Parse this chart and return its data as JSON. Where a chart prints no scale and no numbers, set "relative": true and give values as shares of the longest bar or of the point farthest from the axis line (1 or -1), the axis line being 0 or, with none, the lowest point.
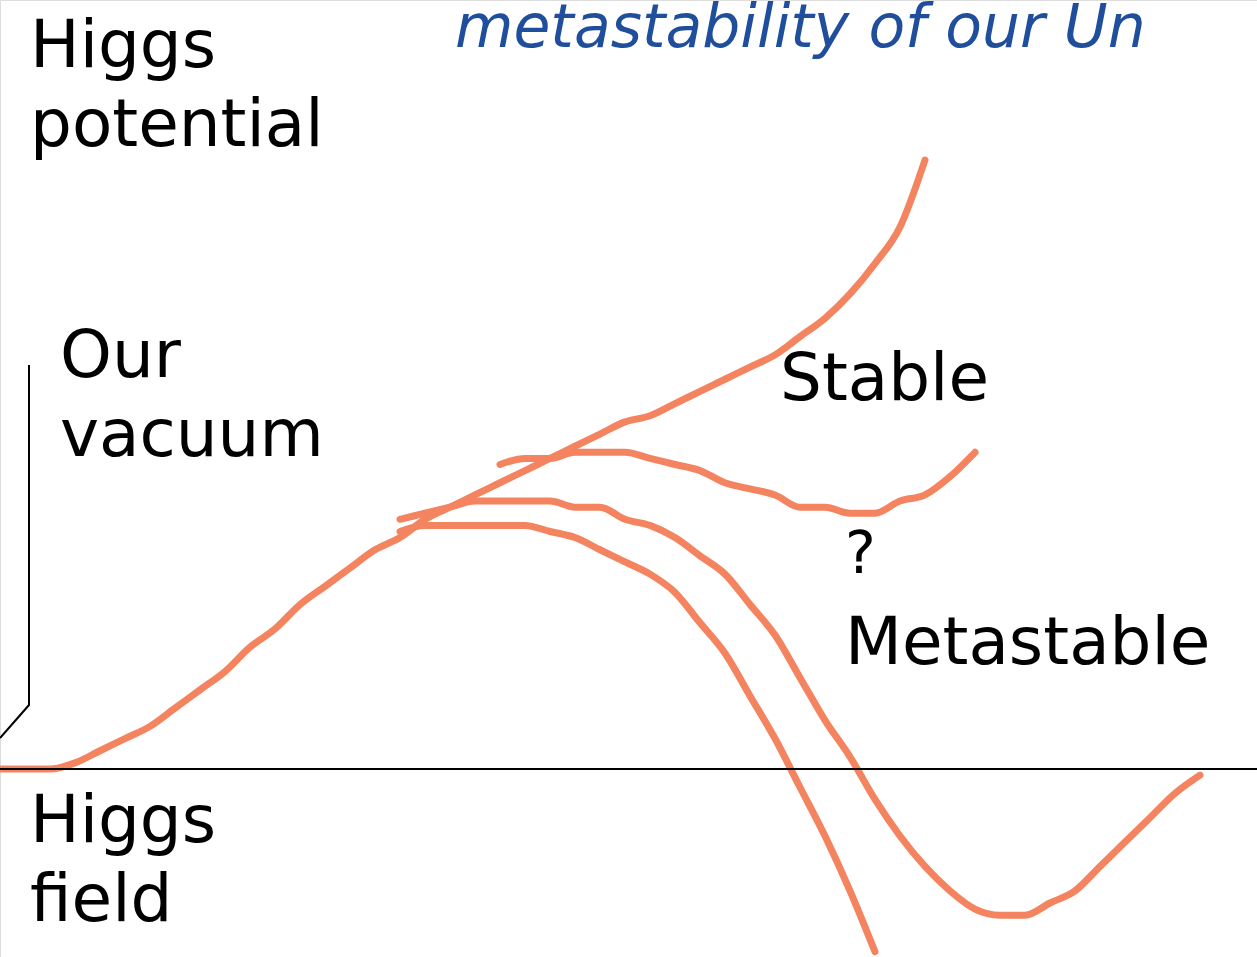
{
  "chart_data": {
    "type": "line",
    "relative": true,
    "title": "metastability of our Un",
    "ylabel": "Higgs potential",
    "xlabel": "Higgs field",
    "categories": [
      null,
      null,
      null,
      null,
      null,
      null,
      null,
      null,
      null,
      null,
      null,
      null,
      null,
      null,
      null,
      null,
      null,
      null,
      null,
      null,
      null,
      null,
      null,
      null,
      null,
      null,
      null,
      null,
      null,
      null,
      null,
      null,
      null,
      null,
      null,
      null,
      null,
      null,
      null,
      null,
      null,
      null,
      null,
      null,
      null,
      null,
      null,
      null,
      null
    ],
    "series": [
      {
        "color": "#f4845f",
        "values": [
          0,
          0,
          0,
          0.01,
          0.03,
          0.05,
          0.07,
          0.1,
          0.13,
          0.16,
          0.2,
          0.23,
          0.27,
          0.3,
          0.33,
          0.36,
          0.38,
          0.41,
          0.43,
          0.45,
          0.47,
          0.49,
          0.51,
          0.53,
          0.55,
          0.57,
          0.58,
          0.6,
          0.62,
          0.64,
          0.66,
          0.68,
          0.71,
          0.74,
          0.78,
          0.83,
          0.89,
          1,
          null,
          null,
          null,
          null,
          null,
          null,
          null,
          null,
          null,
          null,
          null
        ]
      },
      {
        "color": "#f4845f",
        "values": [
          null,
          null,
          null,
          null,
          null,
          null,
          null,
          null,
          null,
          null,
          null,
          null,
          null,
          null,
          null,
          null,
          null,
          null,
          null,
          null,
          0.5,
          0.51,
          0.51,
          0.52,
          0.52,
          0.52,
          0.51,
          0.5,
          0.49,
          0.47,
          0.46,
          0.45,
          0.43,
          0.43,
          0.42,
          0.42,
          0.44,
          0.45,
          0.48,
          0.52,
          null,
          null,
          null,
          null,
          null,
          null,
          null,
          null,
          null
        ]
      },
      {
        "color": "#f4845f",
        "values": [
          null,
          null,
          null,
          null,
          null,
          null,
          null,
          null,
          null,
          null,
          null,
          null,
          null,
          null,
          null,
          null,
          0.41,
          0.42,
          0.43,
          0.44,
          0.44,
          0.44,
          0.44,
          0.43,
          0.43,
          0.41,
          0.4,
          0.38,
          0.35,
          0.32,
          0.27,
          0.22,
          0.15,
          0.08,
          0.02,
          -0.05,
          -0.11,
          -0.16,
          -0.2,
          -0.23,
          -0.24,
          -0.24,
          -0.22,
          -0.2,
          -0.16,
          -0.12,
          -0.08,
          -0.04,
          -0.01
        ]
      },
      {
        "color": "#f4845f",
        "values": [
          null,
          null,
          null,
          null,
          null,
          null,
          null,
          null,
          null,
          null,
          null,
          null,
          null,
          null,
          null,
          null,
          0.39,
          0.4,
          0.4,
          0.4,
          0.4,
          0.4,
          0.39,
          0.38,
          0.36,
          0.34,
          0.32,
          0.29,
          0.24,
          0.19,
          0.12,
          0.05,
          -0.03,
          -0.11,
          -0.2,
          -0.3,
          null,
          null,
          null,
          null,
          null,
          null,
          null,
          null,
          null,
          null,
          null,
          null,
          null
        ]
      }
    ],
    "annotations": [
      "Our vacuum",
      "Stable",
      "?",
      "Metastable"
    ],
    "grid": false
  }
}
